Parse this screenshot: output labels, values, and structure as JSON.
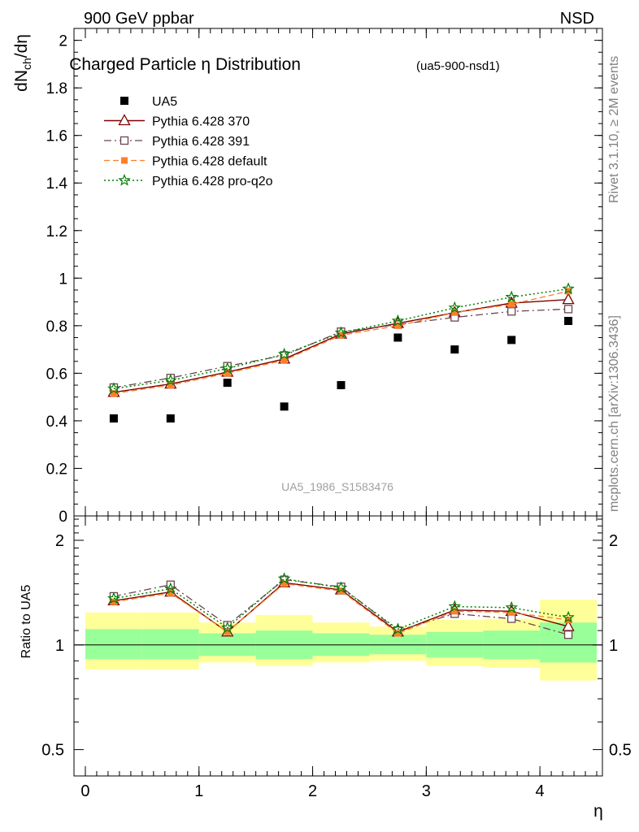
{
  "header": {
    "left": "900 GeV ppbar",
    "right": "NSD"
  },
  "side_text": {
    "rivet": "Rivet 3.1.10, ≥ 2M events",
    "mcplots": "mcplots.cern.ch [arXiv:1306.3436]"
  },
  "watermark": "UA5_1986_S1583476",
  "colors": {
    "data": "#000000",
    "p370": "#7f0000",
    "p391": "#6b4552",
    "pdefault": "#ff7f27",
    "pproq2o": "#007f00",
    "band_inner": "#99ff99",
    "band_outer": "#ffff99"
  },
  "chart_data": [
    {
      "type": "scatter",
      "title": "Charged Particle η Distribution",
      "subtitle": "(ua5-900-nsd1)",
      "ylabel": "dN_ch/dη",
      "xlim": [
        -0.1,
        4.55
      ],
      "ylim": [
        0,
        2.05
      ],
      "yticks": [
        "0",
        "0.2",
        "0.4",
        "0.6",
        "0.8",
        "1",
        "1.2",
        "1.4",
        "1.6",
        "1.8",
        "2"
      ],
      "x": [
        0.25,
        0.75,
        1.25,
        1.75,
        2.25,
        2.75,
        3.25,
        3.75,
        4.25
      ],
      "series": [
        {
          "name": "UA5",
          "marker": "square",
          "values": [
            0.41,
            0.41,
            0.56,
            0.46,
            0.55,
            0.75,
            0.7,
            0.74,
            0.82
          ]
        },
        {
          "name": "Pythia 6.428 370",
          "marker": "triangle",
          "line": "solid",
          "values": [
            0.52,
            0.555,
            0.605,
            0.66,
            0.765,
            0.81,
            0.855,
            0.895,
            0.91
          ]
        },
        {
          "name": "Pythia 6.428 391",
          "marker": "open-square",
          "line": "dashdot",
          "values": [
            0.54,
            0.58,
            0.63,
            0.675,
            0.775,
            0.805,
            0.835,
            0.86,
            0.87
          ]
        },
        {
          "name": "Pythia 6.428 default",
          "marker": "filled-square",
          "line": "dashed",
          "values": [
            0.515,
            0.55,
            0.6,
            0.655,
            0.76,
            0.8,
            0.855,
            0.89,
            0.945
          ]
        },
        {
          "name": "Pythia 6.428 pro-q2o",
          "marker": "star",
          "line": "dotted",
          "values": [
            0.535,
            0.57,
            0.62,
            0.68,
            0.77,
            0.82,
            0.875,
            0.92,
            0.955
          ]
        }
      ]
    },
    {
      "type": "line",
      "ylabel": "Ratio to UA5",
      "xlabel": "η",
      "xlim": [
        -0.1,
        4.55
      ],
      "ylim": [
        0.42,
        2.35
      ],
      "ylog": true,
      "yticks": [
        "0.5",
        "1",
        "2"
      ],
      "xticks": [
        "0",
        "1",
        "2",
        "3",
        "4"
      ],
      "bins": [
        [
          0,
          0.5
        ],
        [
          0.5,
          1.0
        ],
        [
          1.0,
          1.5
        ],
        [
          1.5,
          2.0
        ],
        [
          2.0,
          2.5
        ],
        [
          2.5,
          3.0
        ],
        [
          3.0,
          3.5
        ],
        [
          3.5,
          4.0
        ],
        [
          4.0,
          4.5
        ]
      ],
      "band_inner": [
        [
          0.91,
          1.11
        ],
        [
          0.91,
          1.11
        ],
        [
          0.93,
          1.08
        ],
        [
          0.91,
          1.1
        ],
        [
          0.93,
          1.08
        ],
        [
          0.94,
          1.07
        ],
        [
          0.92,
          1.09
        ],
        [
          0.91,
          1.1
        ],
        [
          0.89,
          1.16
        ]
      ],
      "band_outer": [
        [
          0.85,
          1.24
        ],
        [
          0.85,
          1.24
        ],
        [
          0.89,
          1.16
        ],
        [
          0.87,
          1.22
        ],
        [
          0.89,
          1.16
        ],
        [
          0.9,
          1.13
        ],
        [
          0.87,
          1.18
        ],
        [
          0.86,
          1.19
        ],
        [
          0.79,
          1.35
        ]
      ],
      "x": [
        0.25,
        0.75,
        1.25,
        1.75,
        2.25,
        2.75,
        3.25,
        3.75,
        4.25
      ],
      "series": [
        {
          "name": "Pythia 6.428 370",
          "values": [
            1.34,
            1.42,
            1.09,
            1.51,
            1.44,
            1.09,
            1.26,
            1.25,
            1.13
          ]
        },
        {
          "name": "Pythia 6.428 391",
          "values": [
            1.38,
            1.49,
            1.14,
            1.54,
            1.47,
            1.1,
            1.23,
            1.19,
            1.07
          ]
        },
        {
          "name": "Pythia 6.428 default",
          "values": [
            1.33,
            1.41,
            1.09,
            1.5,
            1.43,
            1.08,
            1.25,
            1.24,
            1.18
          ]
        },
        {
          "name": "Pythia 6.428 pro-q2o",
          "values": [
            1.36,
            1.45,
            1.12,
            1.55,
            1.46,
            1.11,
            1.29,
            1.28,
            1.2
          ]
        }
      ]
    }
  ]
}
